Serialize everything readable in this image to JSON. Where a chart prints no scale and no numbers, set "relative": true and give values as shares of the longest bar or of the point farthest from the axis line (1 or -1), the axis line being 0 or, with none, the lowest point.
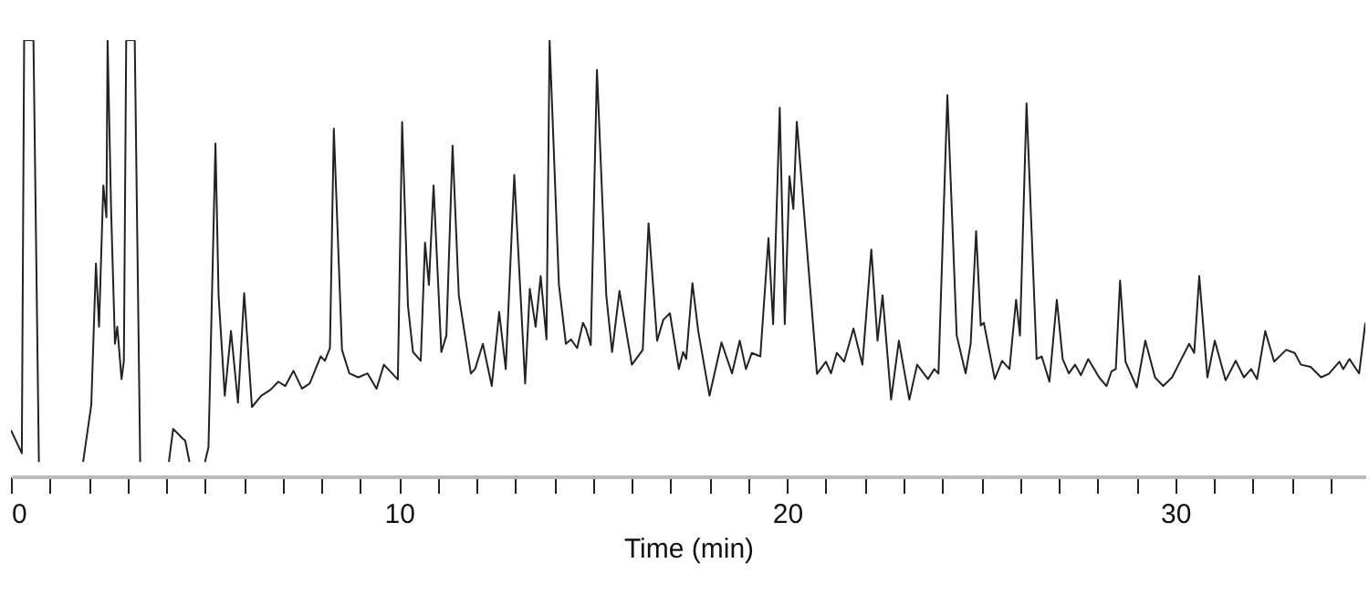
{
  "chart_data": {
    "type": "line",
    "relative": true,
    "xlabel": "Time (min)",
    "xlim": [
      0,
      34.9
    ],
    "xticks": [
      0,
      {
        "value": 1,
        "label": null
      },
      {
        "value": 2,
        "label": null
      },
      {
        "value": 3,
        "label": null
      },
      {
        "value": 4,
        "label": null
      },
      {
        "value": 5,
        "label": null
      },
      {
        "value": 6,
        "label": null
      },
      {
        "value": 7,
        "label": null
      },
      {
        "value": 8,
        "label": null
      },
      {
        "value": 9,
        "label": null
      },
      10,
      {
        "value": 11,
        "label": null
      },
      {
        "value": 12,
        "label": null
      },
      {
        "value": 13,
        "label": null
      },
      {
        "value": 14,
        "label": null
      },
      {
        "value": 15,
        "label": null
      },
      {
        "value": 16,
        "label": null
      },
      {
        "value": 17,
        "label": null
      },
      {
        "value": 18,
        "label": null
      },
      {
        "value": 19,
        "label": null
      },
      20,
      {
        "value": 21,
        "label": null
      },
      {
        "value": 22,
        "label": null
      },
      {
        "value": 23,
        "label": null
      },
      {
        "value": 24,
        "label": null
      },
      {
        "value": 25,
        "label": null
      },
      {
        "value": 26,
        "label": null
      },
      {
        "value": 27,
        "label": null
      },
      {
        "value": 28,
        "label": null
      },
      {
        "value": 29,
        "label": null
      },
      30,
      {
        "value": 31,
        "label": null
      },
      {
        "value": 32,
        "label": null
      },
      {
        "value": 33,
        "label": null
      },
      {
        "value": 34,
        "label": null
      }
    ],
    "grid": false,
    "legend": false,
    "marker": "none",
    "line_style": "solid",
    "series": [
      {
        "color": "#222222",
        "x": [
          0,
          0.28,
          0.34,
          0.58,
          0.72,
          1.2,
          1.86,
          2.07,
          2.19,
          2.27,
          2.38,
          2.46,
          2.49,
          2.58,
          2.68,
          2.74,
          2.85,
          2.91,
          2.97,
          3.19,
          3.33,
          3.8,
          4.07,
          4.18,
          4.41,
          4.49,
          4.6,
          4.8,
          5.0,
          5.09,
          5.27,
          5.35,
          5.51,
          5.67,
          5.85,
          6.01,
          6.21,
          6.45,
          6.68,
          6.89,
          7.07,
          7.28,
          7.5,
          7.7,
          7.98,
          8.09,
          8.22,
          8.32,
          8.53,
          8.72,
          8.95,
          9.19,
          9.42,
          9.61,
          9.97,
          10.08,
          10.23,
          10.36,
          10.56,
          10.67,
          10.77,
          10.89,
          11.09,
          11.22,
          11.38,
          11.54,
          11.85,
          11.96,
          12.16,
          12.39,
          12.58,
          12.75,
          12.97,
          13.25,
          13.37,
          13.52,
          13.65,
          13.8,
          13.88,
          14.12,
          14.3,
          14.43,
          14.59,
          14.74,
          14.82,
          14.94,
          15.1,
          15.34,
          15.49,
          15.68,
          16.0,
          16.28,
          16.43,
          16.65,
          16.81,
          16.98,
          17.21,
          17.32,
          17.4,
          17.56,
          17.71,
          18.0,
          18.31,
          18.58,
          18.78,
          18.94,
          19.09,
          19.31,
          19.52,
          19.64,
          19.81,
          19.94,
          20.06,
          20.16,
          20.25,
          20.77,
          21.0,
          21.13,
          21.28,
          21.47,
          21.71,
          21.94,
          22.17,
          22.33,
          22.46,
          22.68,
          22.88,
          23.15,
          23.35,
          23.63,
          23.79,
          23.9,
          24.13,
          24.37,
          24.6,
          24.73,
          24.87,
          24.99,
          25.07,
          25.35,
          25.54,
          25.73,
          25.9,
          26.0,
          26.17,
          26.43,
          26.56,
          26.76,
          26.95,
          27.1,
          27.26,
          27.42,
          27.57,
          27.76,
          28.04,
          28.23,
          28.36,
          28.47,
          28.58,
          28.72,
          29.01,
          29.23,
          29.48,
          29.69,
          29.92,
          30.16,
          30.36,
          30.49,
          30.62,
          30.83,
          31.02,
          31.3,
          31.56,
          31.77,
          31.96,
          32.11,
          32.32,
          32.55,
          32.86,
          33.08,
          33.24,
          33.49,
          33.76,
          33.96,
          34.23,
          34.33,
          34.49,
          34.74,
          34.9
        ],
        "values": [
          0.106,
          0.053,
          1,
          1,
          0.033,
          null,
          0.033,
          0.164,
          0.488,
          0.343,
          0.667,
          0.594,
          1,
          0.613,
          0.304,
          0.343,
          0.223,
          0.265,
          1,
          1,
          0.033,
          null,
          0.033,
          0.109,
          0.088,
          0.082,
          0.033,
          null,
          0.033,
          0.067,
          0.763,
          0.415,
          0.185,
          0.333,
          0.169,
          0.42,
          0.159,
          0.185,
          0.198,
          0.217,
          0.207,
          0.242,
          0.201,
          0.213,
          0.275,
          0.265,
          0.294,
          0.797,
          0.29,
          0.236,
          0.227,
          0.236,
          0.201,
          0.256,
          0.222,
          0.812,
          0.391,
          0.285,
          0.265,
          0.536,
          0.439,
          0.667,
          0.285,
          0.323,
          0.758,
          0.415,
          0.236,
          0.246,
          0.304,
          0.207,
          0.377,
          0.246,
          0.691,
          0.213,
          0.43,
          0.343,
          0.459,
          0.314,
          1,
          0.439,
          0.304,
          0.314,
          0.294,
          0.352,
          0.338,
          0.301,
          0.932,
          0.415,
          0.285,
          0.425,
          0.256,
          0.29,
          0.58,
          0.311,
          0.359,
          0.374,
          0.246,
          0.285,
          0.269,
          0.443,
          0.333,
          0.185,
          0.307,
          0.236,
          0.311,
          0.246,
          0.283,
          0.275,
          0.546,
          0.349,
          0.845,
          0.349,
          0.688,
          0.613,
          0.813,
          0.235,
          0.263,
          0.236,
          0.283,
          0.263,
          0.339,
          0.256,
          0.52,
          0.311,
          0.415,
          0.176,
          0.311,
          0.176,
          0.256,
          0.223,
          0.246,
          0.236,
          0.874,
          0.323,
          0.236,
          0.304,
          0.562,
          0.346,
          0.352,
          0.223,
          0.265,
          0.246,
          0.405,
          0.323,
          0.855,
          0.269,
          0.275,
          0.217,
          0.405,
          0.269,
          0.236,
          0.256,
          0.232,
          0.269,
          0.227,
          0.207,
          0.241,
          0.246,
          0.449,
          0.263,
          0.204,
          0.311,
          0.227,
          0.207,
          0.227,
          0.269,
          0.304,
          0.283,
          0.459,
          0.227,
          0.311,
          0.22,
          0.265,
          0.227,
          0.246,
          0.223,
          0.333,
          0.263,
          0.29,
          0.283,
          0.256,
          0.251,
          0.227,
          0.235,
          0.263,
          0.246,
          0.269,
          0.236,
          0.352
        ]
      }
    ]
  }
}
